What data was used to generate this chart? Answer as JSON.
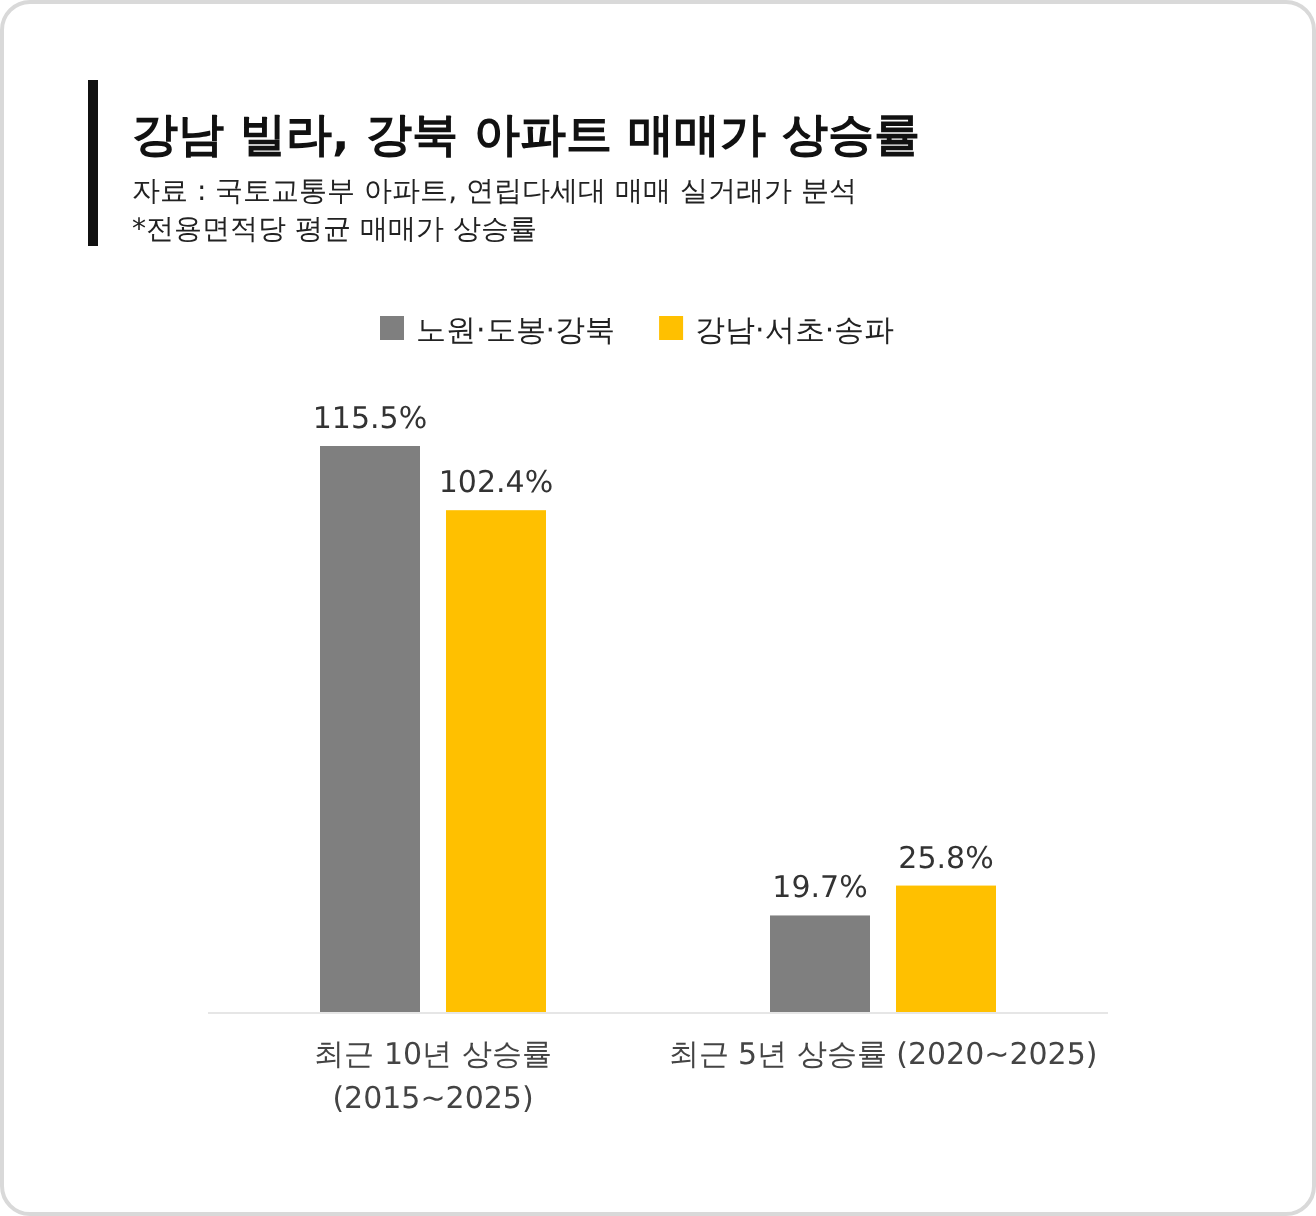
{
  "chart_data": {
    "type": "bar",
    "title": "강남 빌라, 강북 아파트 매매가 상승률",
    "annotations": [
      "자료 : 국토교통부 아파트, 연립다세대 매매 실거래가 분석",
      "*전용면적당 평균 매매가 상승률"
    ],
    "categories": [
      "최근 10년 상승률\n(2015~2025)",
      "최근 5년 상승률 (2020~2025)"
    ],
    "series": [
      {
        "name": "노원·도봉·강북",
        "color": "#7f7f7f",
        "values": [
          115.5,
          19.7
        ],
        "value_labels": [
          "115.5%",
          "19.7%"
        ]
      },
      {
        "name": "강남·서초·송파",
        "color": "#ffc000",
        "values": [
          102.4,
          25.8
        ],
        "value_labels": [
          "102.4%",
          "25.8%"
        ]
      }
    ],
    "legend": "top"
  }
}
